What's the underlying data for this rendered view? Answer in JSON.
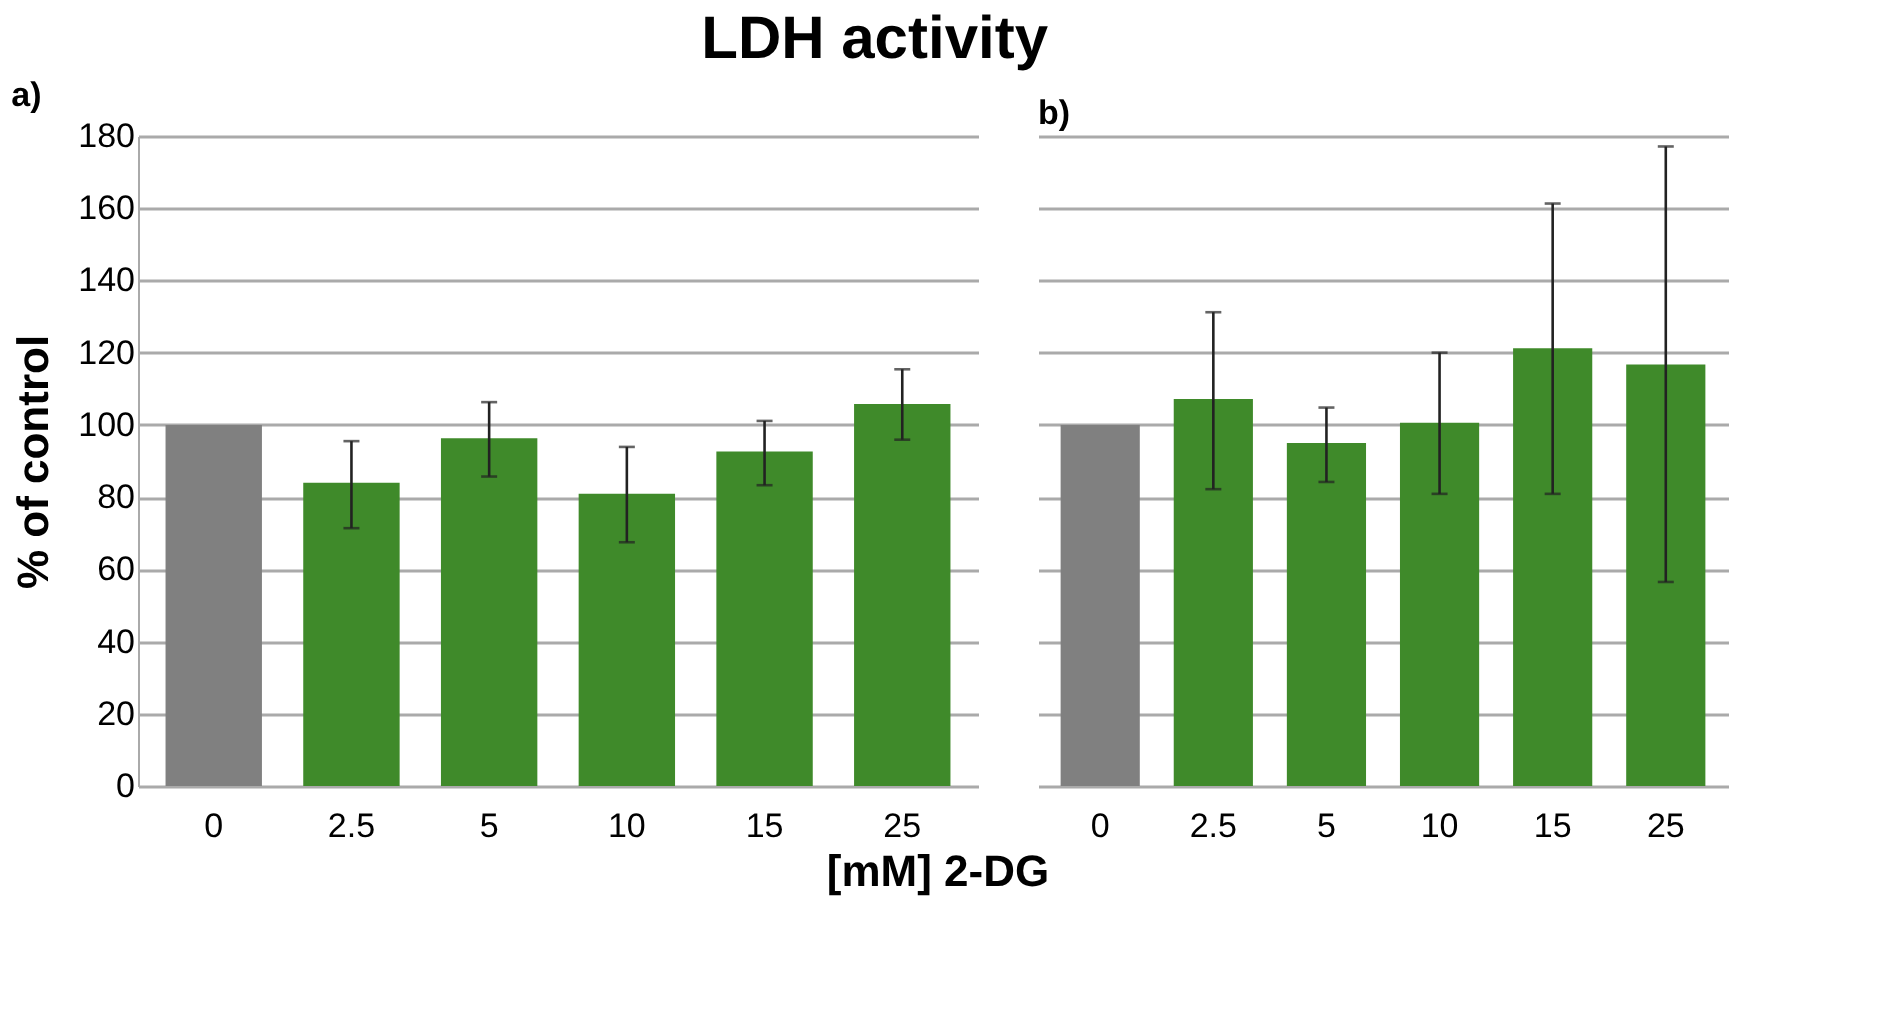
{
  "chart_data": [
    {
      "type": "bar",
      "title": "LDH activity",
      "xlabel": "[mM] 2-DG",
      "ylabel": "% of control",
      "annotations": [
        "a)"
      ],
      "categories": [
        "0",
        "2.5",
        "5",
        "10",
        "15",
        "25"
      ],
      "values": [
        100,
        84,
        96.3,
        80.9,
        92.6,
        105.8
      ],
      "errors": [
        null,
        [
          71.4,
          95.5
        ],
        [
          85.7,
          106.3
        ],
        [
          67.5,
          93.9
        ],
        [
          83.3,
          101.1
        ],
        [
          95.9,
          115.4
        ]
      ],
      "colors": [
        "#808080",
        "#3f8a2a",
        "#3f8a2a",
        "#3f8a2a",
        "#3f8a2a",
        "#3f8a2a"
      ],
      "ylim": [
        0,
        180
      ],
      "yticks": [
        0,
        20,
        40,
        60,
        80,
        100,
        120,
        140,
        160,
        180
      ],
      "grid": "y",
      "legend": false
    },
    {
      "type": "bar",
      "annotations": [
        "b)"
      ],
      "categories": [
        "0",
        "2.5",
        "5",
        "10",
        "15",
        "25"
      ],
      "values": [
        100,
        107.2,
        95,
        100.6,
        121.2,
        116.7
      ],
      "errors": [
        null,
        [
          82.2,
          131.2
        ],
        [
          84.2,
          104.8
        ],
        [
          80.9,
          120
        ],
        [
          80.9,
          161.3
        ],
        [
          56.5,
          177.1
        ]
      ],
      "colors": [
        "#808080",
        "#3f8a2a",
        "#3f8a2a",
        "#3f8a2a",
        "#3f8a2a",
        "#3f8a2a"
      ],
      "ylim": [
        0,
        180
      ],
      "yticks": [
        0,
        20,
        40,
        60,
        80,
        100,
        120,
        140,
        160,
        180
      ],
      "grid": "y",
      "legend": false,
      "tick_labels": "x"
    }
  ]
}
